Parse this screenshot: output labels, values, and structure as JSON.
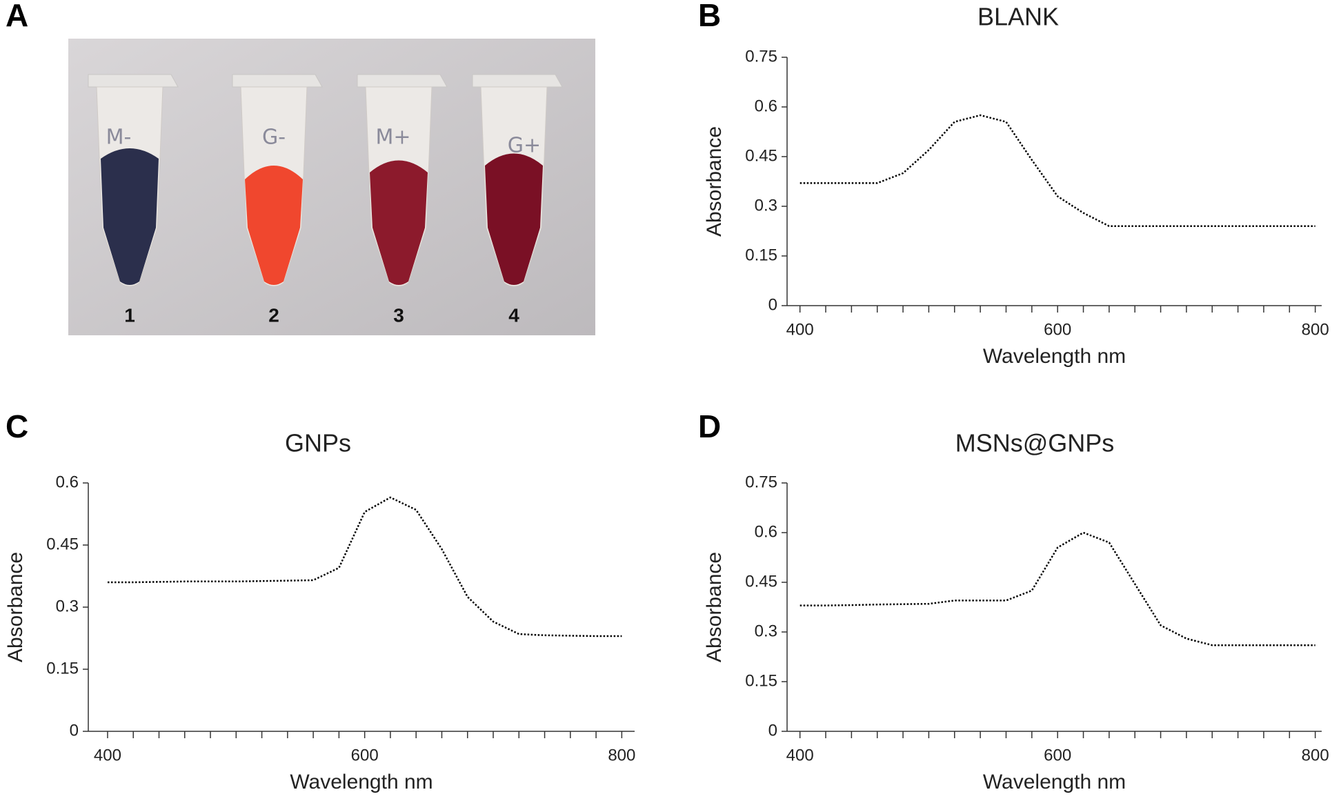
{
  "panel_labels": [
    "A",
    "B",
    "C",
    "D"
  ],
  "photo": {
    "cap_labels": [
      "M-",
      "G-",
      "M+",
      "G+"
    ],
    "tube_labels": [
      "1",
      "2",
      "3",
      "4"
    ]
  },
  "chart_data": [
    {
      "type": "line",
      "title": "BLANK",
      "x_label": "Wavelength nm",
      "y_label": "Absorbance",
      "x": [
        400,
        420,
        440,
        460,
        480,
        500,
        520,
        540,
        560,
        580,
        600,
        620,
        640,
        660,
        680,
        700,
        720,
        740,
        760,
        780,
        800
      ],
      "values": [
        0.37,
        0.37,
        0.37,
        0.37,
        0.4,
        0.47,
        0.555,
        0.575,
        0.555,
        0.44,
        0.33,
        0.28,
        0.24,
        0.24,
        0.24,
        0.24,
        0.24,
        0.24,
        0.24,
        0.24,
        0.24
      ],
      "color": "#000000",
      "line_style": "dotted",
      "xlim": [
        390,
        805
      ],
      "xticks": [
        400,
        600,
        800
      ],
      "xminorticks": [
        420,
        440,
        460,
        480,
        500,
        520,
        540,
        560,
        580,
        620,
        640,
        660,
        680,
        700,
        720,
        740,
        760,
        780
      ],
      "ylim": [
        0,
        0.75
      ],
      "yticks": [
        0,
        0.15,
        0.3,
        0.45,
        0.6,
        0.75
      ]
    },
    {
      "type": "line",
      "title": "GNPs",
      "x_label": "Wavelength nm",
      "y_label": "Absorbance",
      "x": [
        400,
        420,
        440,
        460,
        480,
        500,
        520,
        540,
        560,
        580,
        600,
        620,
        640,
        660,
        680,
        700,
        720,
        740,
        760,
        780,
        800
      ],
      "values": [
        0.36,
        0.36,
        0.361,
        0.362,
        0.362,
        0.362,
        0.363,
        0.364,
        0.365,
        0.395,
        0.53,
        0.565,
        0.535,
        0.44,
        0.325,
        0.265,
        0.235,
        0.232,
        0.231,
        0.23,
        0.23
      ],
      "color": "#000000",
      "line_style": "dotted",
      "xlim": [
        385,
        810
      ],
      "xticks": [
        400,
        600,
        800
      ],
      "xminorticks": [
        420,
        440,
        460,
        480,
        500,
        520,
        540,
        560,
        580,
        620,
        640,
        660,
        680,
        700,
        720,
        740,
        760,
        780
      ],
      "ylim": [
        0,
        0.6
      ],
      "yticks": [
        0,
        0.15,
        0.3,
        0.45,
        0.6
      ]
    },
    {
      "type": "line",
      "title": "MSNs@GNPs",
      "x_label": "Wavelength nm",
      "y_label": "Absorbance",
      "x": [
        400,
        420,
        440,
        460,
        480,
        500,
        520,
        540,
        560,
        580,
        600,
        620,
        640,
        660,
        680,
        700,
        720,
        740,
        760,
        780,
        800
      ],
      "values": [
        0.38,
        0.38,
        0.381,
        0.383,
        0.384,
        0.385,
        0.395,
        0.395,
        0.395,
        0.425,
        0.555,
        0.6,
        0.57,
        0.445,
        0.32,
        0.28,
        0.26,
        0.26,
        0.26,
        0.26,
        0.26
      ],
      "color": "#000000",
      "line_style": "dotted",
      "xlim": [
        390,
        805
      ],
      "xticks": [
        400,
        600,
        800
      ],
      "xminorticks": [
        420,
        440,
        460,
        480,
        500,
        520,
        540,
        560,
        580,
        620,
        640,
        660,
        680,
        700,
        720,
        740,
        760,
        780
      ],
      "ylim": [
        0,
        0.75
      ],
      "yticks": [
        0,
        0.15,
        0.3,
        0.45,
        0.6,
        0.75
      ]
    }
  ]
}
